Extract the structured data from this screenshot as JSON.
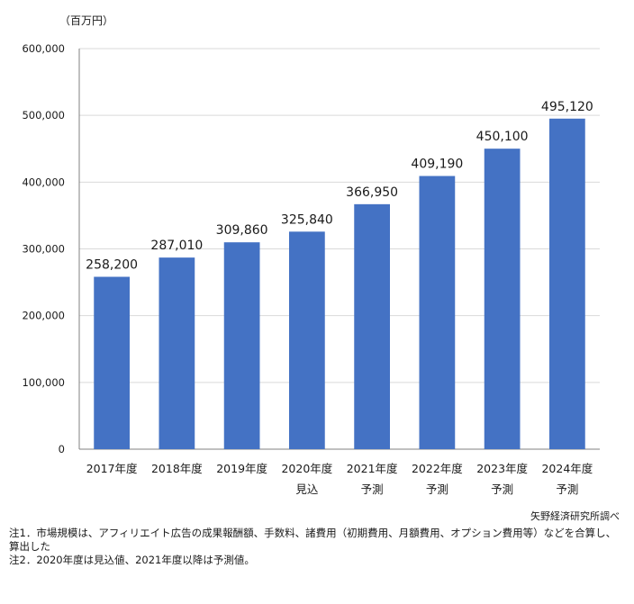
{
  "chart_data": {
    "type": "bar",
    "unit_label": "（百万円）",
    "categories": [
      [
        "2017年度",
        ""
      ],
      [
        "2018年度",
        ""
      ],
      [
        "2019年度",
        ""
      ],
      [
        "2020年度",
        "見込"
      ],
      [
        "2021年度",
        "予測"
      ],
      [
        "2022年度",
        "予測"
      ],
      [
        "2023年度",
        "予測"
      ],
      [
        "2024年度",
        "予測"
      ]
    ],
    "values": [
      258200,
      287010,
      309860,
      325840,
      366950,
      409190,
      450100,
      495120
    ],
    "value_labels": [
      "258,200",
      "287,010",
      "309,860",
      "325,840",
      "366,950",
      "409,190",
      "450,100",
      "495,120"
    ],
    "y_ticks": [
      "0",
      "100,000",
      "200,000",
      "300,000",
      "400,000",
      "500,000",
      "600,000"
    ],
    "ylim": [
      0,
      600000
    ],
    "grid": true,
    "legend": "none",
    "colors": {
      "bar": "#4472C4",
      "grid": "#d9d9d9",
      "axis": "#808080"
    }
  },
  "source": "矢野経済研究所調べ",
  "notes": [
    "注1．市場規模は、アフィリエイト広告の成果報酬額、手数料、諸費用（初期費用、月額費用、オプション費用等）などを合算し、算出した",
    "注2．2020年度は見込値、2021年度以降は予測値。"
  ]
}
